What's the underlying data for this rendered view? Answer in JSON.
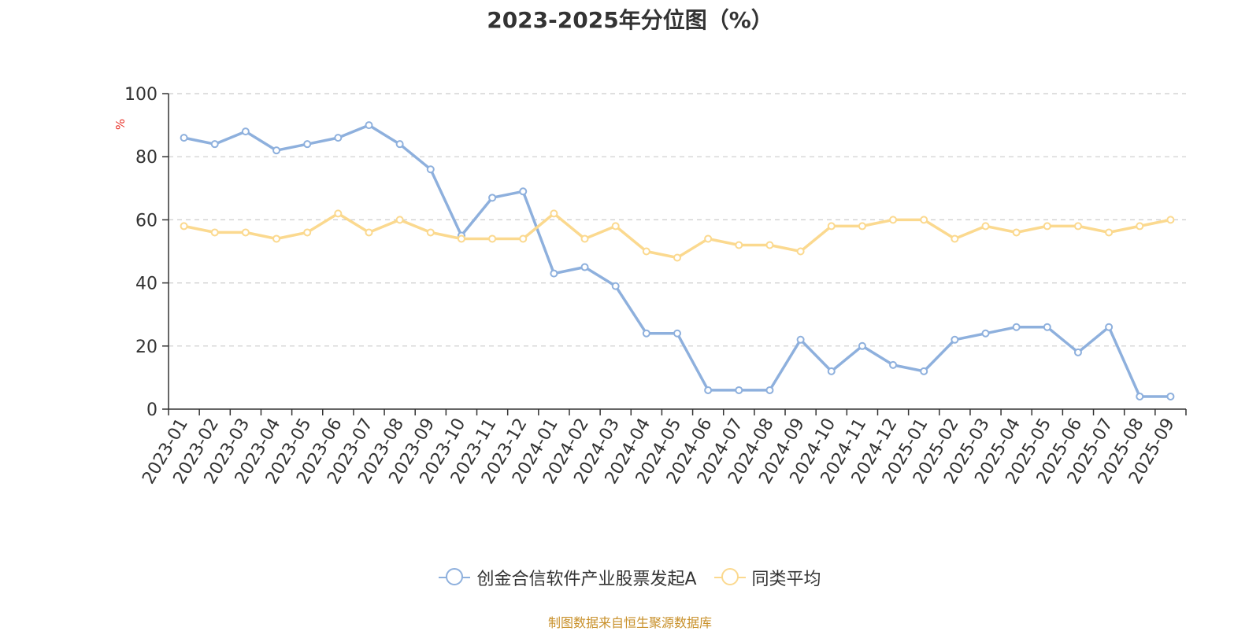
{
  "chart_data": {
    "type": "line",
    "title": "2023-2025年分位图（%）",
    "ylabel": "%",
    "xlabel": "",
    "ylim": [
      0,
      100
    ],
    "yticks": [
      "0",
      "20",
      "40",
      "60",
      "80",
      "100"
    ],
    "grid": true,
    "legend_position": "bottom",
    "categories": [
      "2023-01",
      "2023-02",
      "2023-03",
      "2023-04",
      "2023-05",
      "2023-06",
      "2023-07",
      "2023-08",
      "2023-09",
      "2023-10",
      "2023-11",
      "2023-12",
      "2024-01",
      "2024-02",
      "2024-03",
      "2024-04",
      "2024-05",
      "2024-06",
      "2024-07",
      "2024-08",
      "2024-09",
      "2024-10",
      "2024-11",
      "2024-12",
      "2025-01",
      "2025-02",
      "2025-03",
      "2025-04",
      "2025-05",
      "2025-06",
      "2025-07",
      "2025-08",
      "2025-09"
    ],
    "series": [
      {
        "name": "创金合信软件产业股票发起A",
        "color": "#8eb0dd",
        "values": [
          86,
          84,
          88,
          82,
          84,
          86,
          90,
          84,
          76,
          55,
          67,
          69,
          43,
          45,
          39,
          24,
          24,
          6,
          6,
          6,
          22,
          12,
          20,
          14,
          12,
          22,
          24,
          26,
          26,
          18,
          26,
          4,
          4
        ]
      },
      {
        "name": "同类平均",
        "color": "#fbd98f",
        "values": [
          58,
          56,
          56,
          54,
          56,
          62,
          56,
          60,
          56,
          54,
          54,
          54,
          62,
          54,
          58,
          50,
          48,
          54,
          52,
          52,
          50,
          58,
          58,
          60,
          60,
          54,
          58,
          56,
          58,
          58,
          56,
          58,
          60
        ]
      }
    ]
  },
  "source_note": "制图数据来自恒生聚源数据库"
}
